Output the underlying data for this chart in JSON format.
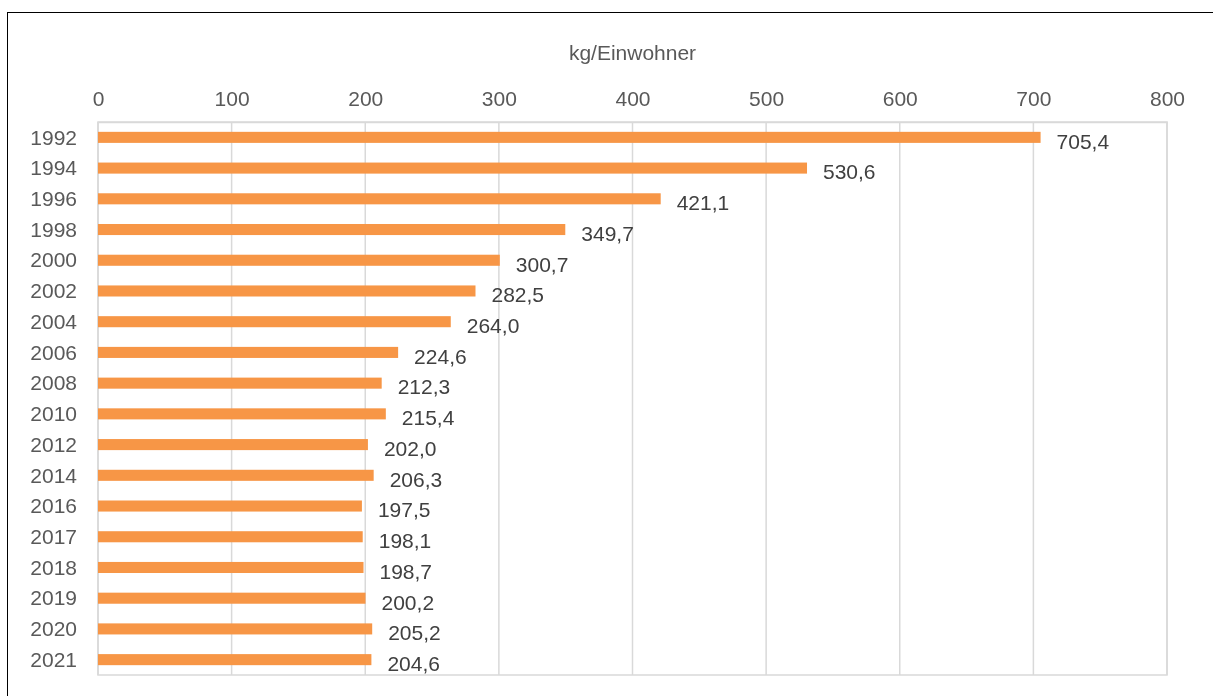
{
  "chart_data": {
    "type": "bar",
    "orientation": "horizontal",
    "xlabel": "kg/Einwohner",
    "categories": [
      "1992",
      "1994",
      "1996",
      "1998",
      "2000",
      "2002",
      "2004",
      "2006",
      "2008",
      "2010",
      "2012",
      "2014",
      "2016",
      "2017",
      "2018",
      "2019",
      "2020",
      "2021"
    ],
    "values": [
      705.4,
      530.6,
      421.1,
      349.7,
      300.7,
      282.5,
      264.0,
      224.6,
      212.3,
      215.4,
      202.0,
      206.3,
      197.5,
      198.1,
      198.7,
      200.2,
      205.2,
      204.6
    ],
    "value_labels": [
      "705,4",
      "530,6",
      "421,1",
      "349,7",
      "300,7",
      "282,5",
      "264,0",
      "224,6",
      "212,3",
      "215,4",
      "202,0",
      "206,3",
      "197,5",
      "198,1",
      "198,7",
      "200,2",
      "205,2",
      "204,6"
    ],
    "color": "#f79646",
    "xlim": [
      0,
      800
    ],
    "xticks": [
      0,
      100,
      200,
      300,
      400,
      500,
      600,
      700,
      800
    ],
    "grid": "x"
  }
}
